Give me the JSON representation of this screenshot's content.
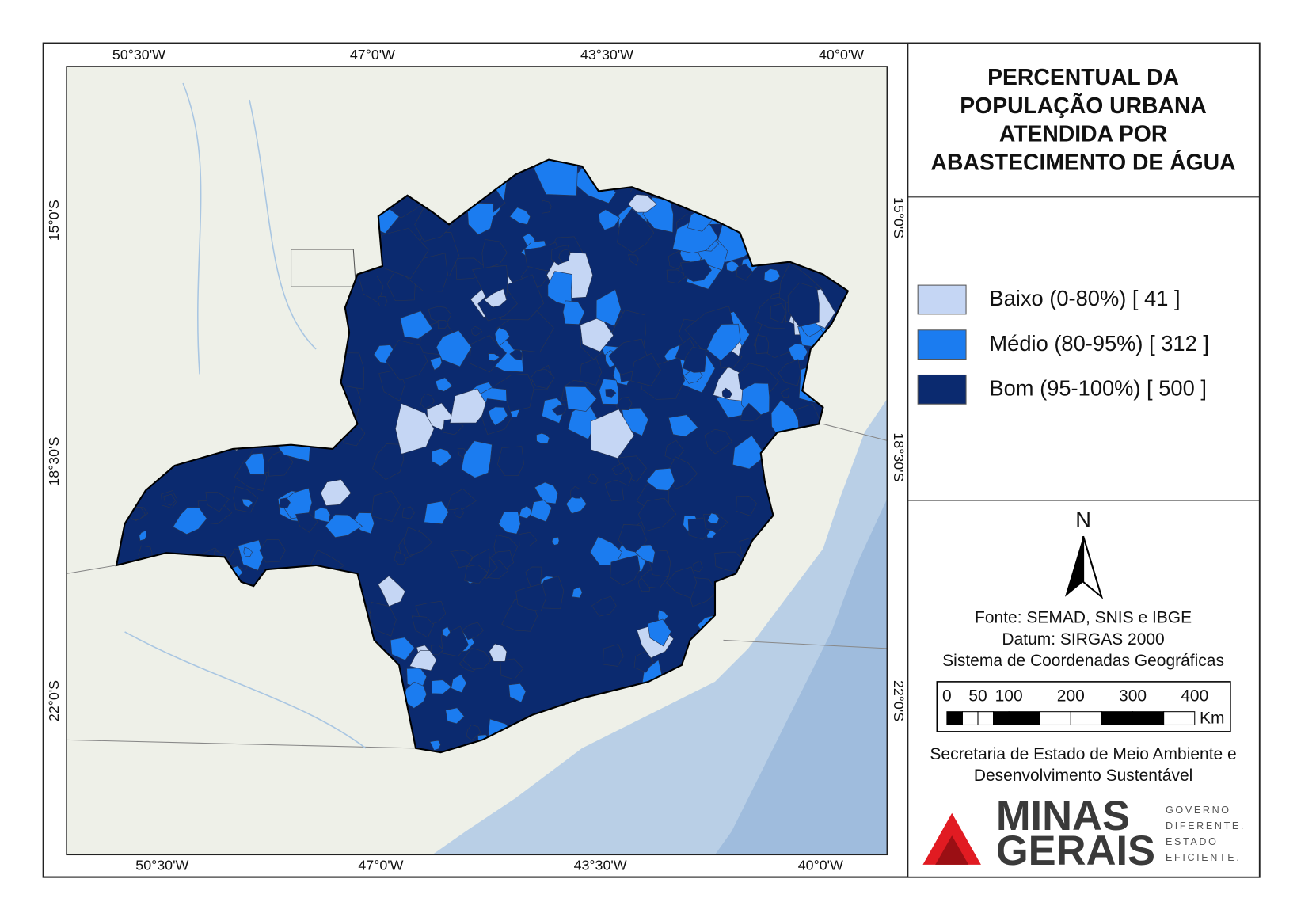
{
  "map": {
    "title_lines": [
      "PERCENTUAL DA",
      "POPULAÇÃO URBANA",
      "ATENDIDA POR",
      "ABASTECIMENTO DE ÁGUA"
    ],
    "top_labels": [
      "50°30'W",
      "47°0'W",
      "43°30'W",
      "40°0'W"
    ],
    "bottom_labels": [
      "50°30'W",
      "47°0'W",
      "43°30'W",
      "40°0'W"
    ],
    "left_labels": [
      "15°0'S",
      "18°30'S",
      "22°0'S"
    ],
    "right_labels": [
      "15°0'S",
      "18°30'S",
      "22°0'S"
    ],
    "legend": [
      {
        "label": "Baixo (0-80%) [ 41 ]",
        "color": "#c5d6f4"
      },
      {
        "label": "Médio (80-95%) [ 312 ]",
        "color": "#1b7cf0"
      },
      {
        "label": "Bom (95-100%) [ 500 ]",
        "color": "#0b2a6f"
      }
    ],
    "north": "N",
    "source_lines": [
      "Fonte: SEMAD, SNIS e IBGE",
      "Datum: SIRGAS 2000",
      "Sistema de Coordenadas Geográficas"
    ],
    "scale_labels": [
      0,
      50,
      100,
      200,
      300,
      400
    ],
    "scale_unit": "Km",
    "agency_lines": [
      "Secretaria de Estado de Meio Ambiente e",
      "Desenvolvimento Sustentável"
    ],
    "logo": {
      "main": [
        "MINAS",
        "GERAIS"
      ],
      "side": [
        "GOVERNO",
        "DIFERENTE.",
        "ESTADO",
        "EFICIENTE."
      ]
    }
  }
}
